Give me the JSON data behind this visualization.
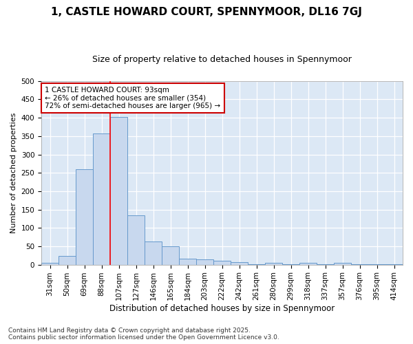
{
  "title1": "1, CASTLE HOWARD COURT, SPENNYMOOR, DL16 7GJ",
  "title2": "Size of property relative to detached houses in Spennymoor",
  "xlabel": "Distribution of detached houses by size in Spennymoor",
  "ylabel": "Number of detached properties",
  "categories": [
    "31sqm",
    "50sqm",
    "69sqm",
    "88sqm",
    "107sqm",
    "127sqm",
    "146sqm",
    "165sqm",
    "184sqm",
    "203sqm",
    "222sqm",
    "242sqm",
    "261sqm",
    "280sqm",
    "299sqm",
    "318sqm",
    "337sqm",
    "357sqm",
    "376sqm",
    "395sqm",
    "414sqm"
  ],
  "values": [
    5,
    23,
    260,
    357,
    403,
    135,
    63,
    49,
    17,
    14,
    11,
    6,
    1,
    4,
    1,
    5,
    1,
    4,
    1,
    1,
    2
  ],
  "bar_color": "#c8d8ee",
  "bar_edge_color": "#6699cc",
  "background_color": "#dce8f5",
  "grid_color": "#ffffff",
  "red_line_index": 3.5,
  "annotation_text": "1 CASTLE HOWARD COURT: 93sqm\n← 26% of detached houses are smaller (354)\n72% of semi-detached houses are larger (965) →",
  "annotation_box_color": "#ffffff",
  "annotation_box_edge": "#cc0000",
  "footer": "Contains HM Land Registry data © Crown copyright and database right 2025.\nContains public sector information licensed under the Open Government Licence v3.0.",
  "ylim": [
    0,
    500
  ],
  "yticks": [
    0,
    50,
    100,
    150,
    200,
    250,
    300,
    350,
    400,
    450,
    500
  ],
  "fig_bg": "#ffffff",
  "title1_fontsize": 11,
  "title2_fontsize": 9,
  "ylabel_fontsize": 8,
  "xlabel_fontsize": 8.5,
  "tick_fontsize": 7.5,
  "footer_fontsize": 6.5,
  "annot_fontsize": 7.5
}
